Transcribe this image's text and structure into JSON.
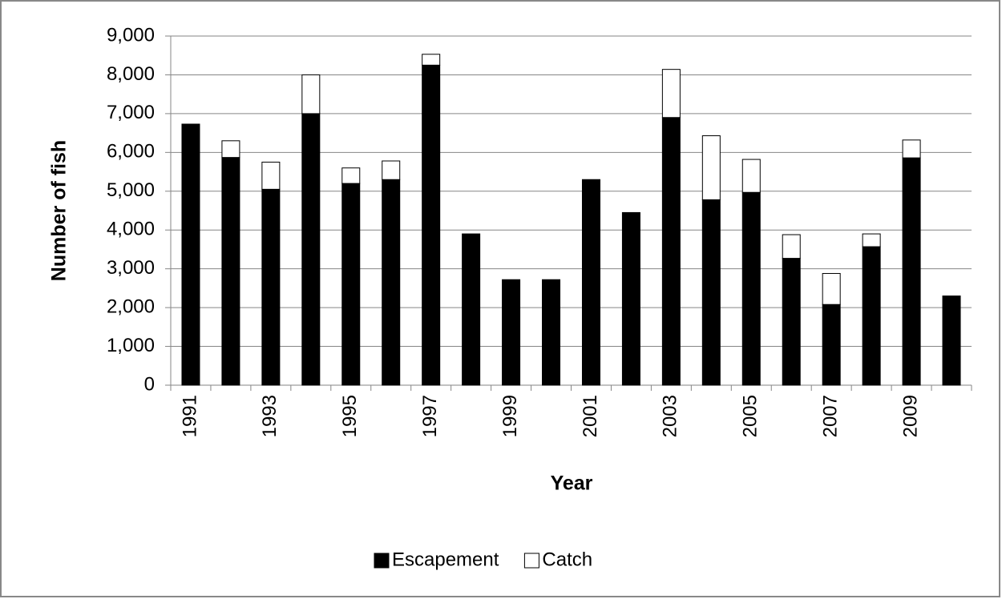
{
  "chart_data": {
    "type": "bar",
    "stacked": true,
    "x_label": "Year",
    "y_label": "Number of fish",
    "categories": [
      "1991",
      null,
      "1993",
      null,
      "1995",
      null,
      "1997",
      null,
      "1999",
      null,
      "2001",
      null,
      "2003",
      null,
      "2005",
      null,
      "2007",
      null,
      "2009",
      null
    ],
    "series": [
      {
        "name": "Escapement",
        "color": "#000000",
        "values": [
          6730,
          5870,
          5050,
          7000,
          5200,
          5300,
          8250,
          3900,
          2720,
          2720,
          5300,
          4450,
          6900,
          4780,
          4970,
          3270,
          2080,
          3570,
          5860,
          2300
        ]
      },
      {
        "name": "Catch",
        "color": "#ffffff",
        "values": [
          0,
          430,
          700,
          1000,
          400,
          480,
          280,
          0,
          0,
          0,
          0,
          0,
          1240,
          1650,
          850,
          610,
          800,
          330,
          460,
          0
        ]
      }
    ],
    "ylim": [
      0,
      9000
    ],
    "yticks": [
      0,
      {
        "value": 1000,
        "label": "1,000"
      },
      {
        "value": 2000,
        "label": "2,000"
      },
      {
        "value": 3000,
        "label": "3,000"
      },
      {
        "value": 4000,
        "label": "4,000"
      },
      {
        "value": 5000,
        "label": "5,000"
      },
      {
        "value": 6000,
        "label": "6,000"
      },
      {
        "value": 7000,
        "label": "7,000"
      },
      {
        "value": 8000,
        "label": "8,000"
      },
      {
        "value": 9000,
        "label": "9,000"
      }
    ],
    "grid": true,
    "legend": "bottom"
  }
}
